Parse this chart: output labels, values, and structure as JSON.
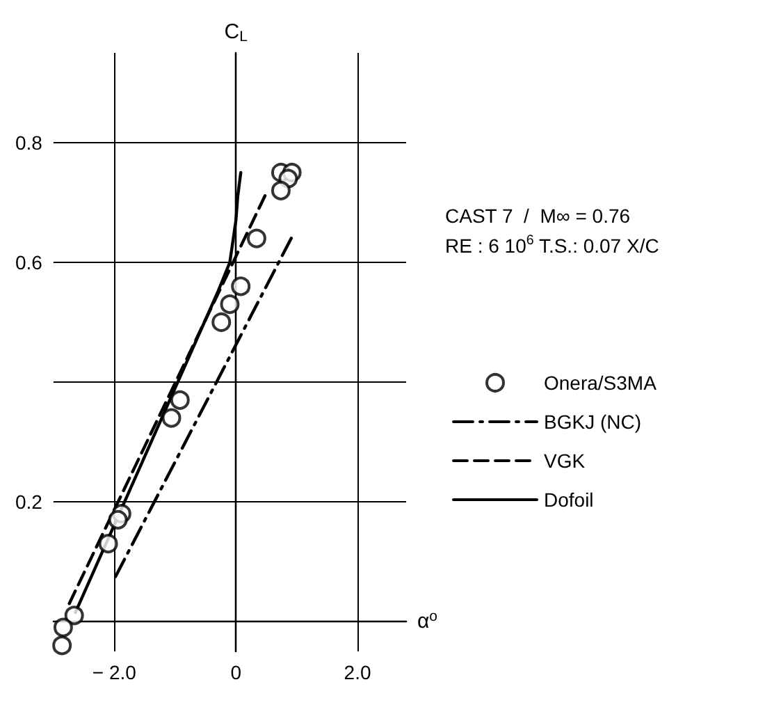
{
  "chart_data": {
    "type": "line",
    "xlabel": "α$^{o}$",
    "ylabel": "C$_{L}$",
    "xlim": [
      -3,
      2.8
    ],
    "ylim": [
      -0.05,
      0.95
    ],
    "xticks": [
      {
        "value": -2,
        "label": "− 2.0"
      },
      0,
      {
        "value": 2,
        "label": "2.0"
      }
    ],
    "yticks": [
      0.2,
      {
        "value": 0.4,
        "label": null
      },
      0.6,
      0.8
    ],
    "grid": true,
    "legend": "right",
    "annotations": [
      "CAST 7  /  M∞ = 0.76",
      "RE : 6 10$^{6}$ T.S.: 0.07 X/C"
    ],
    "series": [
      {
        "name": "Onera/S3MA",
        "type": "scatter",
        "color": "#000000",
        "marker": "circle",
        "x": [
          0.74,
          0.92,
          0.86,
          0.74,
          0.34,
          0.08,
          -0.1,
          -0.24,
          -0.92,
          -1.06,
          -1.88,
          -1.94,
          -2.1,
          -2.66,
          -2.84,
          -2.86
        ],
        "values": [
          0.75,
          0.75,
          0.74,
          0.72,
          0.64,
          0.56,
          0.53,
          0.5,
          0.37,
          0.34,
          0.18,
          0.17,
          0.13,
          0.01,
          -0.01,
          -0.04
        ]
      },
      {
        "name": "BGKJ (NC)",
        "color": "#000000",
        "line_style": "dashdot",
        "x": [
          -1.98,
          0.96
        ],
        "values": [
          0.075,
          0.65
        ]
      },
      {
        "name": "VGK",
        "color": "#000000",
        "line_style": "dashed",
        "x": [
          -2.74,
          0.52
        ],
        "values": [
          0.03,
          0.72
        ]
      },
      {
        "name": "Dofoil",
        "color": "#000000",
        "line_style": "solid",
        "x": [
          -2.64,
          -0.3,
          -0.1,
          0,
          0.03,
          0.08
        ],
        "values": [
          0.015,
          0.55,
          0.6,
          0.67,
          0.71,
          0.75
        ]
      }
    ]
  }
}
